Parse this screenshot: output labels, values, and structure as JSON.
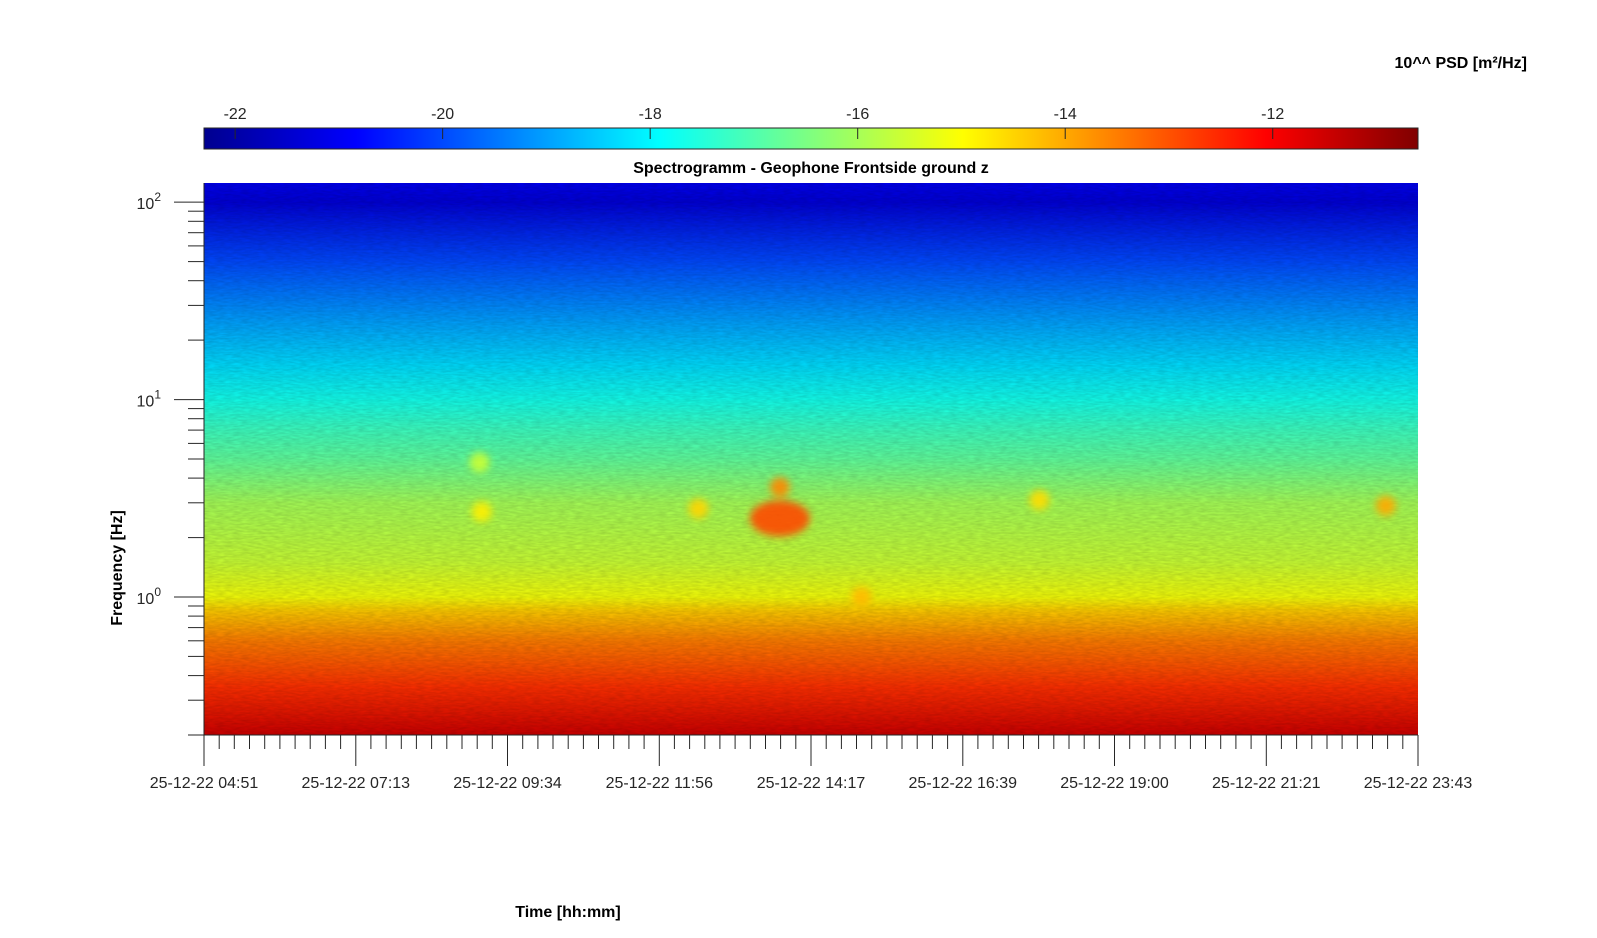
{
  "chart_data": {
    "type": "heatmap",
    "title": "Spectrogramm - Geophone Frontside ground z",
    "xlabel": "Time [hh:mm]",
    "ylabel": "Frequency [Hz]",
    "colorbar_label": "10^^ PSD [m²/Hz]",
    "x_ticks": [
      "25-12-22 04:51",
      "25-12-22 07:13",
      "25-12-22 09:34",
      "25-12-22 11:56",
      "25-12-22 14:17",
      "25-12-22 16:39",
      "25-12-22 19:00",
      "25-12-22 21:21",
      "25-12-22 23:43"
    ],
    "y_scale": "log",
    "y_ticks": [
      {
        "base": "10",
        "exp": "2",
        "value": 100
      },
      {
        "base": "10",
        "exp": "1",
        "value": 10
      },
      {
        "base": "10",
        "exp": "0",
        "value": 1
      }
    ],
    "ylim": [
      0.2,
      125
    ],
    "colorbar_ticks": [
      "-22",
      "-20",
      "-18",
      "-16",
      "-14",
      "-12"
    ],
    "clim": [
      -22.3,
      -10.6
    ],
    "colormap": "jet",
    "psd_profile": [
      {
        "f": 0.2,
        "psd": -11.5
      },
      {
        "f": 0.35,
        "psd": -12.6
      },
      {
        "f": 0.6,
        "psd": -13.5
      },
      {
        "f": 0.85,
        "psd": -14.4
      },
      {
        "f": 1.0,
        "psd": -15.1
      },
      {
        "f": 1.5,
        "psd": -15.6
      },
      {
        "f": 3.0,
        "psd": -16.0
      },
      {
        "f": 5.0,
        "psd": -16.8
      },
      {
        "f": 7.0,
        "psd": -17.2
      },
      {
        "f": 10.0,
        "psd": -17.7
      },
      {
        "f": 15.0,
        "psd": -18.3
      },
      {
        "f": 25.0,
        "psd": -19.0
      },
      {
        "f": 50.0,
        "psd": -20.0
      },
      {
        "f": 100.0,
        "psd": -21.3
      },
      {
        "f": 125.0,
        "psd": -21.0
      }
    ],
    "events": [
      {
        "time": "25-12-22 09:08",
        "f": 4.8,
        "psd": -15.6
      },
      {
        "time": "25-12-22 09:10",
        "f": 2.7,
        "psd": -14.8
      },
      {
        "time": "25-12-22 12:32",
        "f": 2.8,
        "psd": -14.5
      },
      {
        "time": "25-12-22 13:48",
        "f": 2.5,
        "psd": -12.9
      },
      {
        "time": "25-12-22 13:48",
        "f": 3.6,
        "psd": -13.6
      },
      {
        "time": "25-12-22 15:04",
        "f": 1.0,
        "psd": -14.2
      },
      {
        "time": "25-12-22 17:50",
        "f": 3.1,
        "psd": -14.6
      },
      {
        "time": "25-12-22 23:13",
        "f": 2.9,
        "psd": -14.0
      }
    ]
  }
}
